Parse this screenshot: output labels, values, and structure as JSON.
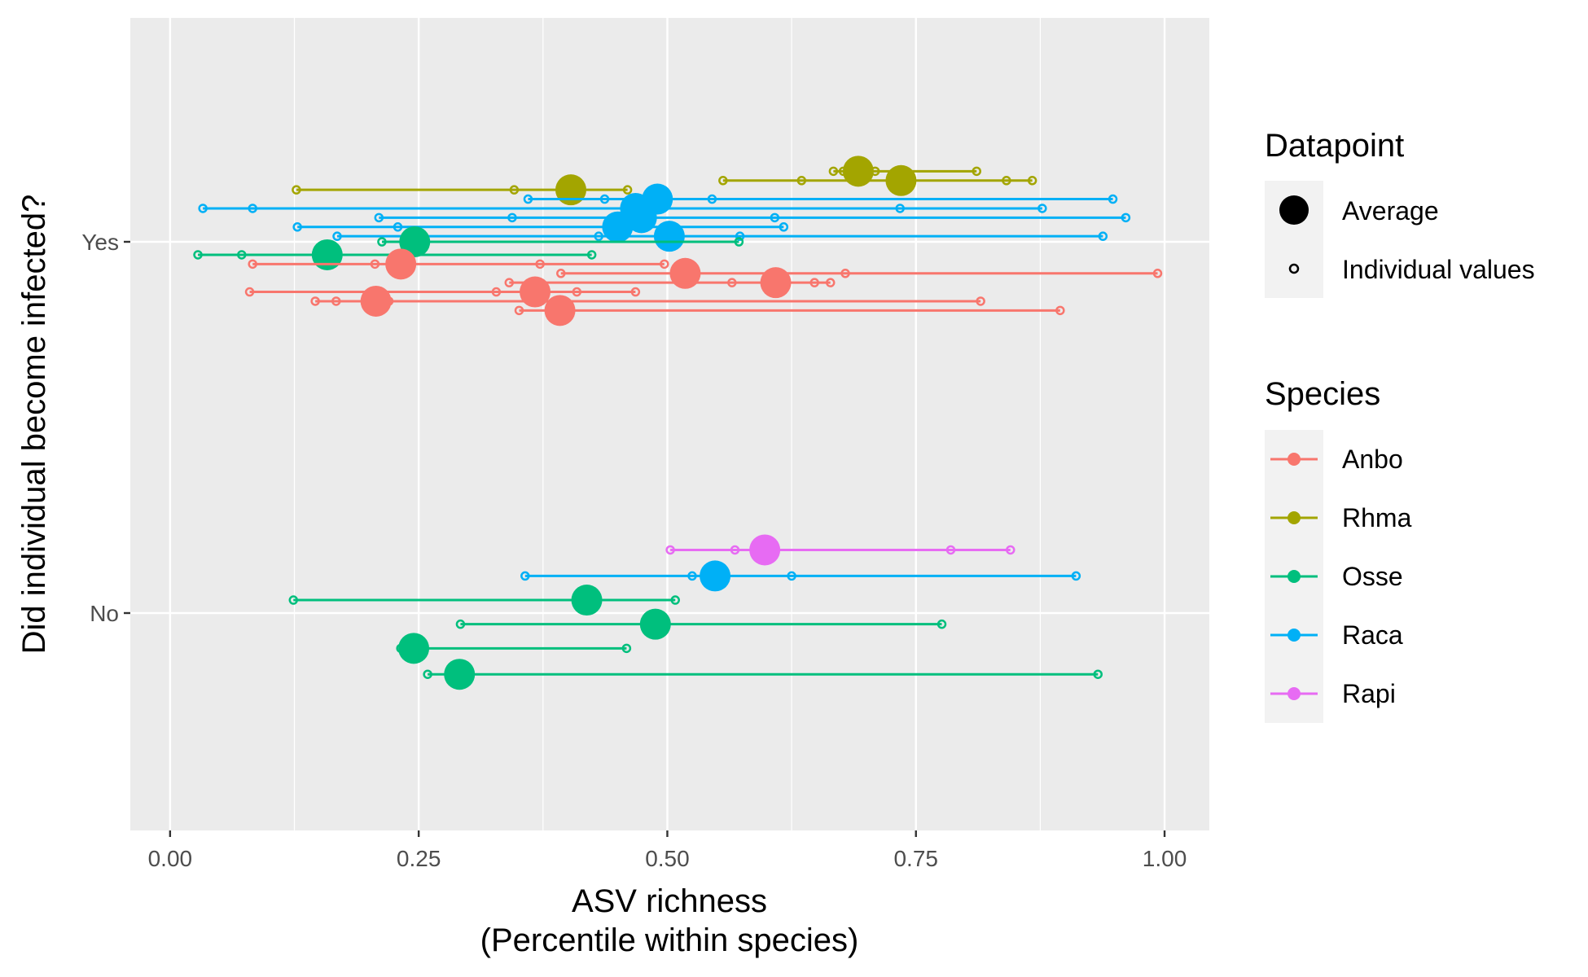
{
  "chart_data": {
    "type": "scatter",
    "xlabel": [
      "ASV richness",
      "(Percentile within species)"
    ],
    "ylabel": "Did individual become infected?",
    "xlim": [
      -0.04,
      1.045
    ],
    "x_ticks": [
      "0.00",
      "0.25",
      "0.50",
      "0.75",
      "1.00"
    ],
    "x_tick_values": [
      0,
      0.25,
      0.5,
      0.75,
      1.0
    ],
    "y_categories": [
      "No",
      "Yes"
    ],
    "grid": true,
    "legend_position": "right",
    "colors": {
      "Anbo": "#F8766D",
      "Rhma": "#A3A500",
      "Osse": "#00BF7D",
      "Raca": "#00B0F6",
      "Rapi": "#E76BF3"
    },
    "legend": {
      "datapoint_title": "Datapoint",
      "datapoint_entries": [
        "Average",
        "Individual values"
      ],
      "species_title": "Species",
      "species_entries": [
        "Anbo",
        "Rhma",
        "Osse",
        "Raca",
        "Rapi"
      ]
    },
    "series": [
      {
        "group": "Yes",
        "offset": 0.19,
        "species": "Rhma",
        "average": 0.692,
        "values": [
          0.667,
          0.677,
          0.709,
          0.811
        ]
      },
      {
        "group": "Yes",
        "offset": 0.165,
        "species": "Rhma",
        "average": 0.735,
        "values": [
          0.556,
          0.635,
          0.841,
          0.867
        ]
      },
      {
        "group": "Yes",
        "offset": 0.14,
        "species": "Rhma",
        "average": 0.403,
        "values": [
          0.127,
          0.346,
          0.46
        ]
      },
      {
        "group": "Yes",
        "offset": 0.115,
        "species": "Raca",
        "average": 0.49,
        "values": [
          0.36,
          0.437,
          0.545,
          0.948
        ]
      },
      {
        "group": "Yes",
        "offset": 0.09,
        "species": "Raca",
        "average": 0.468,
        "values": [
          0.033,
          0.083,
          0.734,
          0.877
        ]
      },
      {
        "group": "Yes",
        "offset": 0.065,
        "species": "Raca",
        "average": 0.474,
        "values": [
          0.21,
          0.344,
          0.608,
          0.961
        ]
      },
      {
        "group": "Yes",
        "offset": 0.04,
        "species": "Raca",
        "average": 0.45,
        "values": [
          0.128,
          0.229,
          0.617
        ]
      },
      {
        "group": "Yes",
        "offset": 0.015,
        "species": "Raca",
        "average": 0.502,
        "values": [
          0.168,
          0.431,
          0.573,
          0.938
        ]
      },
      {
        "group": "Yes",
        "offset": 0.0,
        "species": "Osse",
        "average": 0.246,
        "values": [
          0.213,
          0.572
        ]
      },
      {
        "group": "Yes",
        "offset": -0.035,
        "species": "Osse",
        "average": 0.158,
        "values": [
          0.028,
          0.072,
          0.424
        ]
      },
      {
        "group": "Yes",
        "offset": -0.06,
        "species": "Anbo",
        "average": 0.232,
        "values": [
          0.083,
          0.206,
          0.372,
          0.497
        ]
      },
      {
        "group": "Yes",
        "offset": -0.085,
        "species": "Anbo",
        "average": 0.518,
        "values": [
          0.393,
          0.679,
          0.993
        ]
      },
      {
        "group": "Yes",
        "offset": -0.11,
        "species": "Anbo",
        "average": 0.609,
        "values": [
          0.341,
          0.565,
          0.648,
          0.664
        ]
      },
      {
        "group": "Yes",
        "offset": -0.135,
        "species": "Anbo",
        "average": 0.367,
        "values": [
          0.08,
          0.328,
          0.409,
          0.468
        ]
      },
      {
        "group": "Yes",
        "offset": -0.16,
        "species": "Anbo",
        "average": 0.207,
        "values": [
          0.146,
          0.167,
          0.22,
          0.815
        ]
      },
      {
        "group": "Yes",
        "offset": -0.185,
        "species": "Anbo",
        "average": 0.392,
        "values": [
          0.351,
          0.895
        ]
      },
      {
        "group": "No",
        "offset": 0.17,
        "species": "Rapi",
        "average": 0.598,
        "values": [
          0.503,
          0.568,
          0.785,
          0.845
        ]
      },
      {
        "group": "No",
        "offset": 0.1,
        "species": "Raca",
        "average": 0.548,
        "values": [
          0.357,
          0.525,
          0.625,
          0.911
        ]
      },
      {
        "group": "No",
        "offset": 0.035,
        "species": "Osse",
        "average": 0.419,
        "values": [
          0.124,
          0.508
        ]
      },
      {
        "group": "No",
        "offset": -0.03,
        "species": "Osse",
        "average": 0.488,
        "values": [
          0.292,
          0.776
        ]
      },
      {
        "group": "No",
        "offset": -0.095,
        "species": "Osse",
        "average": 0.245,
        "values": [
          0.232,
          0.459
        ]
      },
      {
        "group": "No",
        "offset": -0.165,
        "species": "Osse",
        "average": 0.291,
        "values": [
          0.259,
          0.933
        ]
      }
    ]
  }
}
